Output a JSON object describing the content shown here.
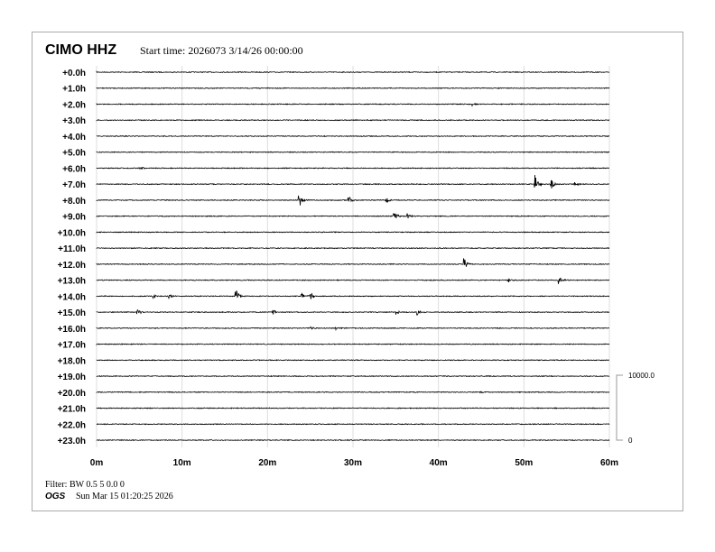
{
  "header": {
    "station": "CIMO HHZ",
    "start_time": "Start time: 2026073  3/14/26 00:00:00"
  },
  "footer": {
    "filter": "Filter: BW 0.5 5 0.0 0",
    "org": "OGS",
    "timestamp": "Sun Mar 15 01:20:25 2026"
  },
  "chart_data": {
    "type": "line",
    "subtype": "helicorder",
    "title": "CIMO HHZ",
    "row_labels": [
      "+0.0h",
      "+1.0h",
      "+2.0h",
      "+3.0h",
      "+4.0h",
      "+5.0h",
      "+6.0h",
      "+7.0h",
      "+8.0h",
      "+9.0h",
      "+10.0h",
      "+11.0h",
      "+12.0h",
      "+13.0h",
      "+14.0h",
      "+15.0h",
      "+16.0h",
      "+17.0h",
      "+18.0h",
      "+19.0h",
      "+20.0h",
      "+21.0h",
      "+22.0h",
      "+23.0h"
    ],
    "x_ticks": [
      "0m",
      "10m",
      "20m",
      "30m",
      "40m",
      "50m",
      "60m"
    ],
    "xlim": [
      0,
      60
    ],
    "grid": "vertical",
    "scale_bar": {
      "top_label": "10000.0",
      "bottom_label": "0"
    },
    "trace_color": "#000000",
    "events": [
      {
        "hour": 2,
        "minute": 44.0,
        "amp": 300
      },
      {
        "hour": 6,
        "minute": 5.1,
        "amp": 400
      },
      {
        "hour": 7,
        "minute": 51.3,
        "amp": 1400
      },
      {
        "hour": 7,
        "minute": 53.2,
        "amp": 800
      },
      {
        "hour": 7,
        "minute": 56.0,
        "amp": 300
      },
      {
        "hour": 8,
        "minute": 23.7,
        "amp": 1100
      },
      {
        "hour": 8,
        "minute": 29.5,
        "amp": 700
      },
      {
        "hour": 8,
        "minute": 33.9,
        "amp": 500
      },
      {
        "hour": 9,
        "minute": 34.8,
        "amp": 700
      },
      {
        "hour": 9,
        "minute": 36.4,
        "amp": 500
      },
      {
        "hour": 12,
        "minute": 43.0,
        "amp": 900
      },
      {
        "hour": 13,
        "minute": 48.2,
        "amp": 300
      },
      {
        "hour": 13,
        "minute": 54.1,
        "amp": 700
      },
      {
        "hour": 14,
        "minute": 6.7,
        "amp": 500
      },
      {
        "hour": 14,
        "minute": 8.5,
        "amp": 400
      },
      {
        "hour": 14,
        "minute": 16.3,
        "amp": 1000
      },
      {
        "hour": 14,
        "minute": 24.0,
        "amp": 600
      },
      {
        "hour": 14,
        "minute": 25.0,
        "amp": 700
      },
      {
        "hour": 15,
        "minute": 4.8,
        "amp": 600
      },
      {
        "hour": 15,
        "minute": 20.7,
        "amp": 400
      },
      {
        "hour": 15,
        "minute": 35.1,
        "amp": 500
      },
      {
        "hour": 15,
        "minute": 37.5,
        "amp": 500
      },
      {
        "hour": 16,
        "minute": 25.1,
        "amp": 250
      },
      {
        "hour": 16,
        "minute": 28.0,
        "amp": 200
      },
      {
        "hour": 20,
        "minute": 44.9,
        "amp": 200
      }
    ]
  }
}
